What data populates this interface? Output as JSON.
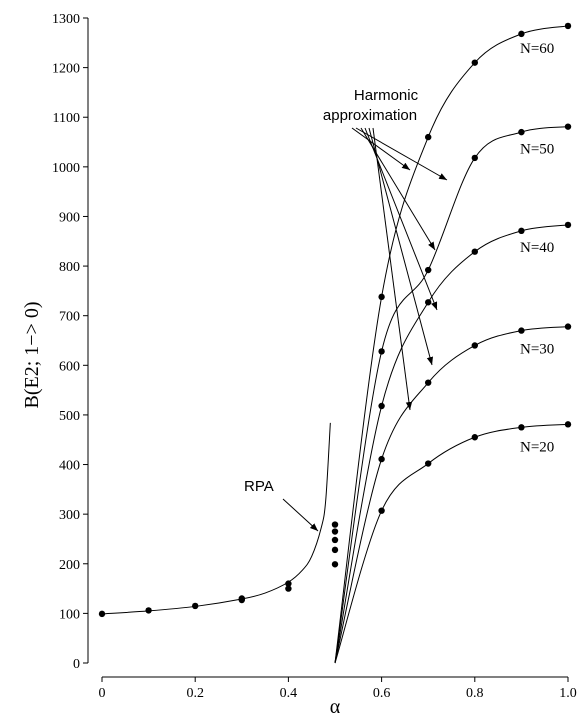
{
  "chart_data": {
    "type": "scatter",
    "xlabel": "α",
    "ylabel": "B(E2; 1−> 0)",
    "xlim": [
      0,
      1.0
    ],
    "ylim": [
      0,
      1300
    ],
    "x_ticks": [
      0,
      0.2,
      0.4,
      0.6,
      0.8,
      1.0
    ],
    "x_tick_labels": [
      "0",
      "0.2",
      "0.4",
      "0.6",
      "0.8",
      "1.0"
    ],
    "y_ticks": [
      0,
      100,
      200,
      300,
      400,
      500,
      600,
      700,
      800,
      900,
      1000,
      1100,
      1200,
      1300
    ],
    "y_tick_labels": [
      "0",
      "100",
      "200",
      "300",
      "400",
      "500",
      "600",
      "700",
      "800",
      "900",
      "1000",
      "1100",
      "1200",
      "1300"
    ],
    "grid": false,
    "series": [
      {
        "name": "N=60",
        "x": [
          0.5,
          0.6,
          0.7,
          0.8,
          0.9,
          1.0
        ],
        "y": [
          0,
          738,
          1060,
          1210,
          1268,
          1284
        ]
      },
      {
        "name": "N=50",
        "x": [
          0.5,
          0.6,
          0.7,
          0.8,
          0.9,
          1.0
        ],
        "y": [
          0,
          628,
          792,
          1018,
          1070,
          1081
        ]
      },
      {
        "name": "N=40",
        "x": [
          0.5,
          0.6,
          0.7,
          0.8,
          0.9,
          1.0
        ],
        "y": [
          0,
          518,
          727,
          829,
          871,
          883
        ]
      },
      {
        "name": "N=30",
        "x": [
          0.5,
          0.6,
          0.7,
          0.8,
          0.9,
          1.0
        ],
        "y": [
          0,
          411,
          565,
          640,
          670,
          678
        ]
      },
      {
        "name": "N=20",
        "x": [
          0.5,
          0.6,
          0.7,
          0.8,
          0.9,
          1.0
        ],
        "y": [
          0,
          307,
          402,
          455,
          475,
          481
        ]
      },
      {
        "name": "",
        "x": [
          0,
          0.1,
          0.2,
          0.3,
          0.3,
          0.4,
          0.4,
          0.5,
          0.5,
          0.5,
          0.5,
          0.5
        ],
        "y": [
          99,
          106,
          115,
          130,
          127,
          160,
          150,
          279,
          265,
          248,
          228,
          199
        ]
      }
    ],
    "rpa_curve": {
      "x": [
        0,
        0.1,
        0.2,
        0.3,
        0.35,
        0.4,
        0.43,
        0.45,
        0.47,
        0.48,
        0.49
      ],
      "y": [
        99,
        105,
        114,
        129,
        141,
        163,
        187,
        215,
        271,
        327,
        484
      ]
    },
    "annotations": [
      {
        "text": "RPA"
      },
      {
        "line1": "Harmonic",
        "line2": "approximation"
      }
    ]
  }
}
